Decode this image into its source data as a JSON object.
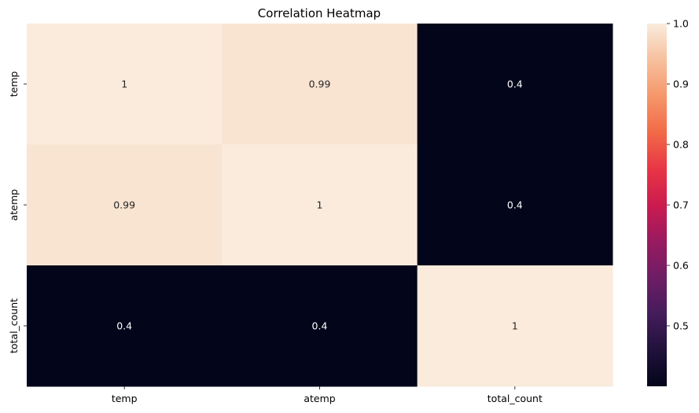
{
  "chart_data": {
    "type": "heatmap",
    "title": "Correlation Heatmap",
    "x_categories": [
      "temp",
      "atemp",
      "total_count"
    ],
    "y_categories": [
      "temp",
      "atemp",
      "total_count"
    ],
    "values": [
      [
        1.0,
        0.99,
        0.4
      ],
      [
        0.99,
        1.0,
        0.4
      ],
      [
        0.4,
        0.4,
        1.0
      ]
    ],
    "cell_labels": [
      [
        "1",
        "0.99",
        "0.4"
      ],
      [
        "0.99",
        "1",
        "0.4"
      ],
      [
        "0.4",
        "0.4",
        "1"
      ]
    ],
    "colorbar": {
      "min": 0.4,
      "max": 1.0,
      "ticks": [
        "0.5",
        "0.6",
        "0.7",
        "0.8",
        "0.9",
        "1.0"
      ],
      "tick_values": [
        0.5,
        0.6,
        0.7,
        0.8,
        0.9,
        1.0
      ]
    },
    "colormap": "rocket",
    "xlabel": "",
    "ylabel": ""
  }
}
